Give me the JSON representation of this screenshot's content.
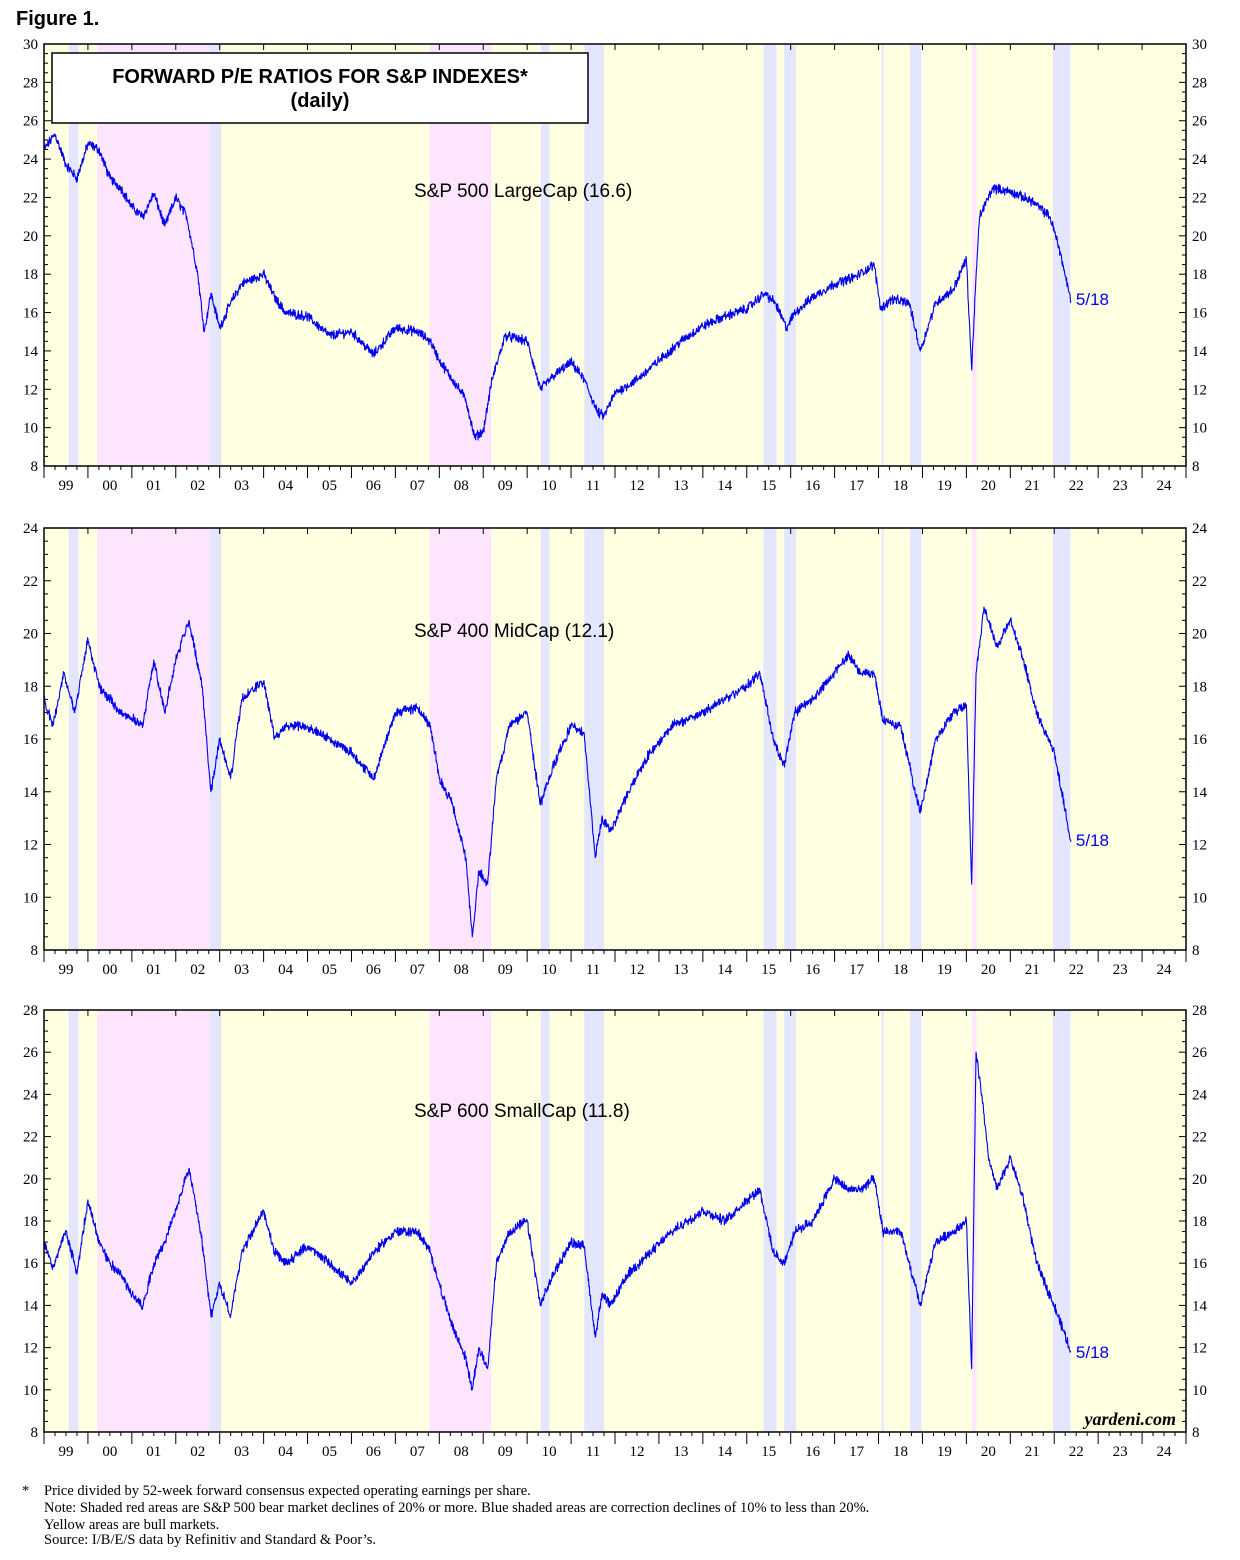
{
  "figure_label": "Figure 1.",
  "title_line1": "FORWARD P/E RATIOS FOR S&P INDEXES*",
  "title_line2": "(daily)",
  "watermark": "yardeni.com",
  "footnotes": {
    "star": "*",
    "line1": "Price divided by 52-week forward consensus expected operating earnings per share.",
    "line2": "Note: Shaded red areas are S&P 500 bear market declines of 20% or more.  Blue shaded areas are correction declines of 10% to less than 20%.",
    "line3": "Yellow areas are bull markets.",
    "line4": "Source: I/B/E/S data by Refinitiv and Standard & Poor’s."
  },
  "colors": {
    "line": "#0000ee",
    "bull": "#ffffe2",
    "bear": "#fde6fd",
    "correction": "#e4e6fd",
    "axis": "#000000"
  },
  "regimes": [
    {
      "type": "bull",
      "start": 1999.0,
      "end": 1999.56
    },
    {
      "type": "correction",
      "start": 1999.56,
      "end": 1999.79
    },
    {
      "type": "bull",
      "start": 1999.79,
      "end": 2000.21
    },
    {
      "type": "bear",
      "start": 2000.21,
      "end": 2002.77
    },
    {
      "type": "correction",
      "start": 2002.77,
      "end": 2003.03
    },
    {
      "type": "bull",
      "start": 2003.03,
      "end": 2007.78
    },
    {
      "type": "bear",
      "start": 2007.78,
      "end": 2009.19
    },
    {
      "type": "bull",
      "start": 2009.19,
      "end": 2010.31
    },
    {
      "type": "correction",
      "start": 2010.31,
      "end": 2010.51
    },
    {
      "type": "bull",
      "start": 2010.51,
      "end": 2011.3
    },
    {
      "type": "correction",
      "start": 2011.3,
      "end": 2011.75
    },
    {
      "type": "bull",
      "start": 2011.75,
      "end": 2015.38
    },
    {
      "type": "correction",
      "start": 2015.38,
      "end": 2015.68
    },
    {
      "type": "bull",
      "start": 2015.68,
      "end": 2015.85
    },
    {
      "type": "correction",
      "start": 2015.85,
      "end": 2016.12
    },
    {
      "type": "bull",
      "start": 2016.12,
      "end": 2018.07
    },
    {
      "type": "correction",
      "start": 2018.07,
      "end": 2018.12
    },
    {
      "type": "bull",
      "start": 2018.12,
      "end": 2018.72
    },
    {
      "type": "correction",
      "start": 2018.72,
      "end": 2018.98
    },
    {
      "type": "bull",
      "start": 2018.98,
      "end": 2020.13
    },
    {
      "type": "bear",
      "start": 2020.13,
      "end": 2020.23
    },
    {
      "type": "bull",
      "start": 2020.23,
      "end": 2021.97
    },
    {
      "type": "correction",
      "start": 2021.97,
      "end": 2022.37
    },
    {
      "type": "bull",
      "start": 2022.37,
      "end": 2024.99
    }
  ],
  "chart_data": [
    {
      "type": "line",
      "series": [
        {
          "name": "S&P 500 LargeCap (16.6)"
        }
      ],
      "end_label": "5/18",
      "x_tick_labels": [
        "99",
        "00",
        "01",
        "02",
        "03",
        "04",
        "05",
        "06",
        "07",
        "08",
        "09",
        "10",
        "11",
        "12",
        "13",
        "14",
        "15",
        "16",
        "17",
        "18",
        "19",
        "20",
        "21",
        "22",
        "23",
        "24"
      ],
      "xlim": [
        1999.0,
        2025.0
      ],
      "ylim": [
        8,
        30
      ],
      "y_ticks": [
        8,
        10,
        12,
        14,
        16,
        18,
        20,
        22,
        24,
        26,
        28,
        30
      ],
      "x": [
        1999.0,
        1999.25,
        1999.5,
        1999.75,
        2000.0,
        2000.25,
        2000.5,
        2000.75,
        2001.0,
        2001.25,
        2001.5,
        2001.75,
        2002.0,
        2002.25,
        2002.5,
        2002.65,
        2002.8,
        2003.0,
        2003.25,
        2003.5,
        2004.0,
        2004.25,
        2004.5,
        2005.0,
        2005.5,
        2006.0,
        2006.5,
        2007.0,
        2007.5,
        2007.8,
        2008.0,
        2008.3,
        2008.6,
        2008.8,
        2009.0,
        2009.2,
        2009.5,
        2010.0,
        2010.3,
        2010.6,
        2011.0,
        2011.3,
        2011.6,
        2011.75,
        2012.0,
        2012.5,
        2013.0,
        2013.5,
        2014.0,
        2014.5,
        2015.0,
        2015.4,
        2015.65,
        2015.9,
        2016.1,
        2016.5,
        2017.0,
        2017.5,
        2017.9,
        2018.05,
        2018.3,
        2018.7,
        2018.95,
        2019.3,
        2019.7,
        2020.0,
        2020.12,
        2020.2,
        2020.3,
        2020.6,
        2021.0,
        2021.5,
        2021.9,
        2022.1,
        2022.38
      ],
      "y": [
        24.5,
        25.3,
        23.7,
        23.0,
        24.8,
        24.5,
        23.0,
        22.5,
        21.5,
        21.0,
        22.2,
        20.5,
        22.0,
        21.0,
        18.0,
        15.0,
        17.0,
        15.2,
        16.5,
        17.5,
        18.0,
        16.8,
        16.0,
        15.8,
        14.8,
        15.0,
        13.8,
        15.2,
        15.0,
        14.5,
        13.5,
        12.5,
        11.5,
        9.5,
        9.8,
        12.5,
        14.8,
        14.5,
        12.0,
        12.7,
        13.4,
        12.5,
        10.8,
        10.6,
        11.8,
        12.5,
        13.5,
        14.5,
        15.3,
        15.8,
        16.2,
        17.0,
        16.5,
        15.2,
        16.0,
        16.8,
        17.5,
        17.9,
        18.5,
        16.2,
        16.7,
        16.5,
        14.0,
        16.5,
        17.2,
        18.8,
        13.0,
        17.0,
        21.0,
        22.5,
        22.3,
        21.8,
        21.0,
        19.5,
        16.6
      ]
    },
    {
      "type": "line",
      "series": [
        {
          "name": "S&P 400 MidCap (12.1)"
        }
      ],
      "end_label": "5/18",
      "x_tick_labels": [
        "99",
        "00",
        "01",
        "02",
        "03",
        "04",
        "05",
        "06",
        "07",
        "08",
        "09",
        "10",
        "11",
        "12",
        "13",
        "14",
        "15",
        "16",
        "17",
        "18",
        "19",
        "20",
        "21",
        "22",
        "23",
        "24"
      ],
      "xlim": [
        1999.0,
        2025.0
      ],
      "ylim": [
        8,
        24
      ],
      "y_ticks": [
        8,
        10,
        12,
        14,
        16,
        18,
        20,
        22,
        24
      ],
      "x": [
        1999.0,
        1999.2,
        1999.45,
        1999.7,
        2000.0,
        2000.25,
        2000.5,
        2000.75,
        2001.0,
        2001.25,
        2001.5,
        2001.75,
        2002.0,
        2002.3,
        2002.6,
        2002.8,
        2003.0,
        2003.25,
        2003.5,
        2004.0,
        2004.25,
        2004.5,
        2005.0,
        2005.5,
        2006.0,
        2006.5,
        2007.0,
        2007.5,
        2007.8,
        2008.0,
        2008.3,
        2008.6,
        2008.75,
        2008.9,
        2009.1,
        2009.3,
        2009.6,
        2010.0,
        2010.3,
        2010.6,
        2011.0,
        2011.3,
        2011.55,
        2011.7,
        2011.9,
        2012.3,
        2012.8,
        2013.3,
        2014.0,
        2014.5,
        2015.0,
        2015.3,
        2015.6,
        2015.85,
        2016.1,
        2016.5,
        2017.0,
        2017.3,
        2017.6,
        2017.9,
        2018.1,
        2018.5,
        2018.95,
        2019.3,
        2019.7,
        2020.0,
        2020.12,
        2020.22,
        2020.4,
        2020.7,
        2021.0,
        2021.3,
        2021.6,
        2022.0,
        2022.38
      ],
      "y": [
        17.5,
        16.5,
        18.5,
        17.0,
        19.8,
        18.0,
        17.5,
        17.0,
        16.8,
        16.5,
        19.0,
        17.0,
        19.0,
        20.5,
        18.0,
        14.0,
        16.0,
        14.5,
        17.5,
        18.2,
        16.0,
        16.5,
        16.5,
        16.0,
        15.5,
        14.5,
        17.0,
        17.2,
        16.5,
        14.5,
        13.5,
        11.5,
        8.5,
        11.0,
        10.5,
        14.5,
        16.5,
        17.0,
        13.5,
        15.0,
        16.5,
        16.2,
        11.5,
        13.0,
        12.5,
        14.0,
        15.5,
        16.5,
        17.0,
        17.5,
        18.0,
        18.5,
        16.0,
        15.0,
        17.0,
        17.5,
        18.5,
        19.2,
        18.5,
        18.5,
        16.7,
        16.5,
        13.2,
        16.0,
        17.0,
        17.3,
        10.5,
        18.5,
        21.0,
        19.5,
        20.5,
        19.0,
        17.0,
        15.5,
        12.1
      ]
    },
    {
      "type": "line",
      "series": [
        {
          "name": "S&P 600 SmallCap (11.8)"
        }
      ],
      "end_label": "5/18",
      "x_tick_labels": [
        "99",
        "00",
        "01",
        "02",
        "03",
        "04",
        "05",
        "06",
        "07",
        "08",
        "09",
        "10",
        "11",
        "12",
        "13",
        "14",
        "15",
        "16",
        "17",
        "18",
        "19",
        "20",
        "21",
        "22",
        "23",
        "24"
      ],
      "xlim": [
        1999.0,
        2025.0
      ],
      "ylim": [
        8,
        28
      ],
      "y_ticks": [
        8,
        10,
        12,
        14,
        16,
        18,
        20,
        22,
        24,
        26,
        28
      ],
      "x": [
        1999.0,
        1999.2,
        1999.5,
        1999.75,
        2000.0,
        2000.25,
        2000.5,
        2000.75,
        2001.0,
        2001.25,
        2001.5,
        2001.75,
        2002.0,
        2002.3,
        2002.6,
        2002.8,
        2003.0,
        2003.25,
        2003.5,
        2004.0,
        2004.25,
        2004.5,
        2005.0,
        2005.5,
        2006.0,
        2006.5,
        2007.0,
        2007.5,
        2007.8,
        2008.0,
        2008.3,
        2008.6,
        2008.75,
        2008.9,
        2009.1,
        2009.3,
        2009.6,
        2010.0,
        2010.3,
        2010.6,
        2011.0,
        2011.3,
        2011.55,
        2011.7,
        2011.9,
        2012.3,
        2012.8,
        2013.3,
        2014.0,
        2014.5,
        2015.0,
        2015.3,
        2015.6,
        2015.85,
        2016.1,
        2016.5,
        2017.0,
        2017.3,
        2017.6,
        2017.9,
        2018.1,
        2018.5,
        2018.95,
        2019.3,
        2019.7,
        2020.0,
        2020.12,
        2020.22,
        2020.35,
        2020.5,
        2020.7,
        2021.0,
        2021.3,
        2021.6,
        2022.0,
        2022.38
      ],
      "y": [
        17.0,
        15.8,
        17.5,
        15.5,
        19.0,
        17.0,
        16.0,
        15.5,
        14.5,
        14.0,
        16.0,
        17.0,
        18.5,
        20.5,
        17.0,
        13.5,
        15.0,
        13.5,
        16.5,
        18.5,
        16.5,
        16.0,
        16.8,
        16.0,
        15.0,
        16.5,
        17.5,
        17.5,
        16.5,
        15.0,
        13.0,
        11.5,
        10.0,
        12.0,
        11.0,
        16.0,
        17.5,
        18.0,
        14.0,
        15.5,
        17.0,
        16.8,
        12.5,
        14.5,
        14.0,
        15.5,
        16.5,
        17.5,
        18.5,
        18.0,
        19.0,
        19.5,
        16.5,
        16.0,
        17.5,
        18.0,
        20.0,
        19.5,
        19.5,
        20.0,
        17.5,
        17.5,
        14.0,
        17.0,
        17.5,
        18.0,
        11.0,
        26.0,
        24.0,
        21.0,
        19.5,
        21.0,
        19.0,
        16.0,
        14.0,
        11.8
      ]
    }
  ]
}
